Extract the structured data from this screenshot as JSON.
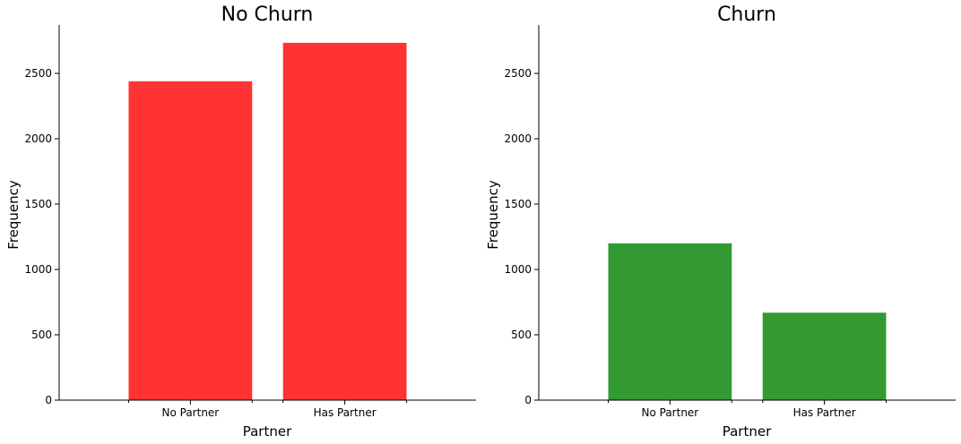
{
  "chart_data": [
    {
      "type": "bar",
      "title": "No Churn",
      "xlabel": "Partner",
      "ylabel": "Frequency",
      "categories": [
        "No Partner",
        "Has Partner"
      ],
      "values": [
        2440,
        2734
      ],
      "color": "#ff3333",
      "ylim": [
        0,
        2870
      ],
      "yticks": [
        0,
        500,
        1000,
        1500,
        2000,
        2500
      ],
      "grid": false
    },
    {
      "type": "bar",
      "title": "Churn",
      "xlabel": "Partner",
      "ylabel": "Frequency",
      "categories": [
        "No Partner",
        "Has Partner"
      ],
      "values": [
        1200,
        669
      ],
      "color": "#339933",
      "ylim": [
        0,
        2870
      ],
      "yticks": [
        0,
        500,
        1000,
        1500,
        2000,
        2500
      ],
      "grid": false
    }
  ]
}
